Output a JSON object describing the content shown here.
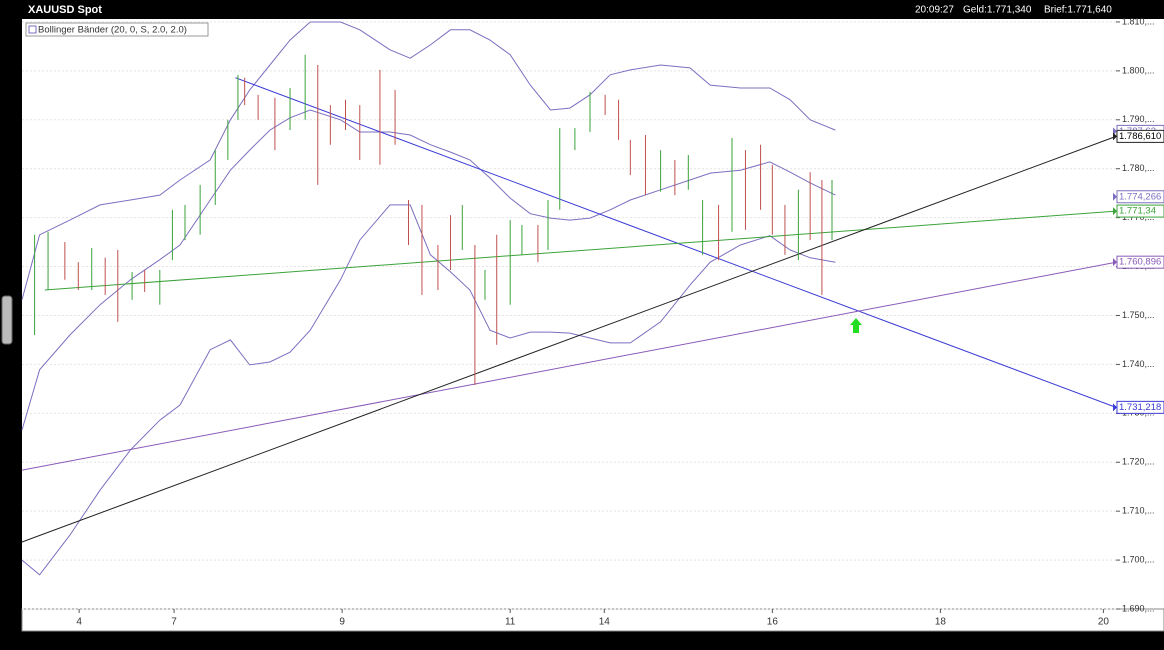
{
  "chart_data": {
    "type": "ohlc",
    "title": "XAUUSD Spot",
    "header": {
      "time": "20:09:27",
      "bid": "Geld:1.771,340",
      "ask": "Brief:1.771,640"
    },
    "indicator": "Bollinger Bänder (20, 0, S, 2.0, 2.0)",
    "xlim": [
      0,
      13.02
    ],
    "xticks": [
      {
        "value": 0.68,
        "label": "4"
      },
      {
        "value": 1.81,
        "label": "7"
      },
      {
        "value": 3.81,
        "label": "9"
      },
      {
        "value": 5.81,
        "label": "11"
      },
      {
        "value": 6.93,
        "label": "14"
      },
      {
        "value": 8.93,
        "label": "16"
      },
      {
        "value": 10.93,
        "label": "18"
      },
      {
        "value": 12.87,
        "label": "20"
      }
    ],
    "ylim": [
      1690,
      1810.4
    ],
    "yticks": [
      {
        "value": 1690,
        "label": "1.690,..."
      },
      {
        "value": 1700,
        "label": "1.700,..."
      },
      {
        "value": 1710,
        "label": "1.710,..."
      },
      {
        "value": 1720,
        "label": "1.720,..."
      },
      {
        "value": 1730,
        "label": "1.730,..."
      },
      {
        "value": 1740,
        "label": "1.740,..."
      },
      {
        "value": 1750,
        "label": "1.750,..."
      },
      {
        "value": 1760,
        "label": "1.760,..."
      },
      {
        "value": 1770,
        "label": "1.770,..."
      },
      {
        "value": 1780,
        "label": "1.780,..."
      },
      {
        "value": 1790,
        "label": "1.790,..."
      },
      {
        "value": 1800,
        "label": "1.800,..."
      },
      {
        "value": 1810,
        "label": "1.810,..."
      }
    ],
    "grid": true,
    "bars": [
      {
        "color": "#3aa33a",
        "x": [
          0.15,
          0.31,
          0.83,
          1.31,
          1.64,
          1.79,
          1.94,
          2.12,
          2.3,
          2.45,
          2.57,
          3.19,
          3.37,
          5.24,
          5.51,
          5.81,
          5.95,
          6.26,
          6.4,
          6.58,
          6.76,
          7.6,
          7.93,
          8.1,
          8.45,
          9.24,
          9.64
        ],
        "high": [
          1766.5,
          1767.1,
          1763.8,
          1758.9,
          1759.3,
          1771.6,
          1772.6,
          1776.7,
          1783.8,
          1790.0,
          1799.2,
          1796.5,
          1803.3,
          1772.6,
          1759.3,
          1769.5,
          1768.5,
          1773.6,
          1788.3,
          1788.3,
          1795.7,
          1783.8,
          1782.8,
          1773.6,
          1786.3,
          1775.7,
          1777.7
        ],
        "low": [
          1746.0,
          1755.2,
          1755.2,
          1753.2,
          1752.2,
          1761.3,
          1765.4,
          1766.5,
          1772.6,
          1781.8,
          1790.0,
          1787.9,
          1790.0,
          1763.4,
          1753.2,
          1752.2,
          1762.4,
          1763.4,
          1771.6,
          1783.8,
          1787.5,
          1775.3,
          1775.7,
          1762.4,
          1767.1,
          1761.3,
          1765.4
        ]
      },
      {
        "color": "#c0504d",
        "x": [
          0.51,
          0.67,
          0.99,
          1.14,
          1.46,
          2.65,
          2.81,
          3.01,
          3.52,
          3.67,
          3.85,
          4.02,
          4.26,
          4.44,
          4.6,
          4.76,
          4.95,
          5.1,
          5.39,
          5.65,
          6.14,
          6.94,
          7.1,
          7.24,
          7.42,
          7.77,
          8.29,
          8.61,
          8.79,
          8.93,
          9.08,
          9.38,
          9.52
        ],
        "high": [
          1765.0,
          1760.9,
          1761.8,
          1763.4,
          1759.3,
          1798.6,
          1795.1,
          1794.5,
          1801.2,
          1793.0,
          1794.1,
          1793.0,
          1800.2,
          1796.1,
          1773.6,
          1772.6,
          1764.4,
          1770.5,
          1764.4,
          1766.5,
          1768.5,
          1795.1,
          1794.1,
          1785.9,
          1786.9,
          1781.8,
          1772.6,
          1783.8,
          1784.9,
          1780.8,
          1772.6,
          1779.3,
          1777.7
        ],
        "low": [
          1757.3,
          1755.2,
          1754.2,
          1748.7,
          1754.8,
          1793.0,
          1790.0,
          1783.8,
          1776.7,
          1784.9,
          1787.9,
          1781.8,
          1780.8,
          1784.9,
          1764.4,
          1754.2,
          1755.2,
          1759.3,
          1735.8,
          1744.0,
          1760.9,
          1791.0,
          1785.9,
          1778.7,
          1774.6,
          1774.6,
          1761.3,
          1767.5,
          1771.6,
          1766.5,
          1762.4,
          1765.4,
          1754.2
        ]
      }
    ],
    "bands": {
      "color": "#7b6fc0",
      "x": [
        0,
        0.21,
        0.57,
        0.93,
        1.29,
        1.64,
        1.88,
        2.24,
        2.48,
        2.71,
        2.95,
        3.19,
        3.43,
        3.79,
        4.02,
        4.38,
        4.62,
        4.86,
        5.1,
        5.33,
        5.57,
        5.81,
        6.05,
        6.29,
        6.52,
        6.76,
        7.0,
        7.24,
        7.6,
        7.95,
        8.19,
        8.55,
        8.9,
        9.14,
        9.38,
        9.68
      ],
      "upper": [
        1753.2,
        1766.5,
        1769.5,
        1772.6,
        1773.6,
        1774.6,
        1777.7,
        1781.8,
        1790.0,
        1796.1,
        1801.2,
        1806.3,
        1810.0,
        1810.0,
        1808.4,
        1804.3,
        1802.6,
        1805.3,
        1808.4,
        1808.4,
        1806.3,
        1803.3,
        1797.1,
        1792.0,
        1792.4,
        1795.1,
        1799.2,
        1800.2,
        1801.2,
        1800.6,
        1797.1,
        1796.5,
        1796.5,
        1794.1,
        1790.0,
        1787.9
      ],
      "middle": [
        1726.6,
        1738.9,
        1746.0,
        1752.2,
        1757.3,
        1761.4,
        1764.4,
        1773.6,
        1779.7,
        1783.8,
        1787.9,
        1790.4,
        1792.0,
        1790.0,
        1787.5,
        1787.5,
        1786.9,
        1784.9,
        1783.4,
        1781.8,
        1778.1,
        1774.0,
        1770.8,
        1769.9,
        1769.5,
        1769.9,
        1771.6,
        1773.6,
        1775.7,
        1777.7,
        1779.1,
        1779.7,
        1781.4,
        1779.3,
        1777.1,
        1774.6
      ],
      "lower": [
        1700.0,
        1697.0,
        1705.1,
        1714.3,
        1722.5,
        1728.6,
        1731.7,
        1743.0,
        1745.0,
        1739.9,
        1740.5,
        1742.5,
        1747.0,
        1757.3,
        1765.4,
        1772.6,
        1772.6,
        1762.4,
        1758.9,
        1755.2,
        1747.0,
        1745.4,
        1746.6,
        1746.6,
        1746.4,
        1745.4,
        1744.4,
        1744.4,
        1748.7,
        1756.2,
        1760.9,
        1764.4,
        1766.3,
        1763.4,
        1761.8,
        1760.9
      ]
    },
    "trendlines": [
      {
        "color": "#3b3bd6",
        "x": [
          2.54,
          13.02
        ],
        "values": [
          1798.6,
          1731.218
        ]
      },
      {
        "color": "#3aa33a",
        "x": [
          0.27,
          13.02
        ],
        "values": [
          1755.2,
          1771.34
        ]
      },
      {
        "color": "#8a5ab8",
        "x": [
          0,
          13.02
        ],
        "values": [
          1718.4,
          1760.896
        ]
      },
      {
        "color": "#222222",
        "x": [
          0,
          13.02
        ],
        "values": [
          1703.7,
          1786.61
        ]
      }
    ],
    "price_labels": [
      {
        "value": 1787.63,
        "label": "1.787,63",
        "color": "#7b6fc0"
      },
      {
        "value": 1786.61,
        "label": "1.786,610",
        "color": "#222222"
      },
      {
        "value": 1774.266,
        "label": "1.774,266",
        "color": "#7b6fc0"
      },
      {
        "value": 1771.34,
        "label": "1.771,34",
        "color": "#3aa33a"
      },
      {
        "value": 1760.896,
        "label": "1.760,896",
        "color": "#8a5ab8"
      },
      {
        "value": 1731.218,
        "label": "1.731,218",
        "color": "#3b3bd6"
      }
    ]
  }
}
